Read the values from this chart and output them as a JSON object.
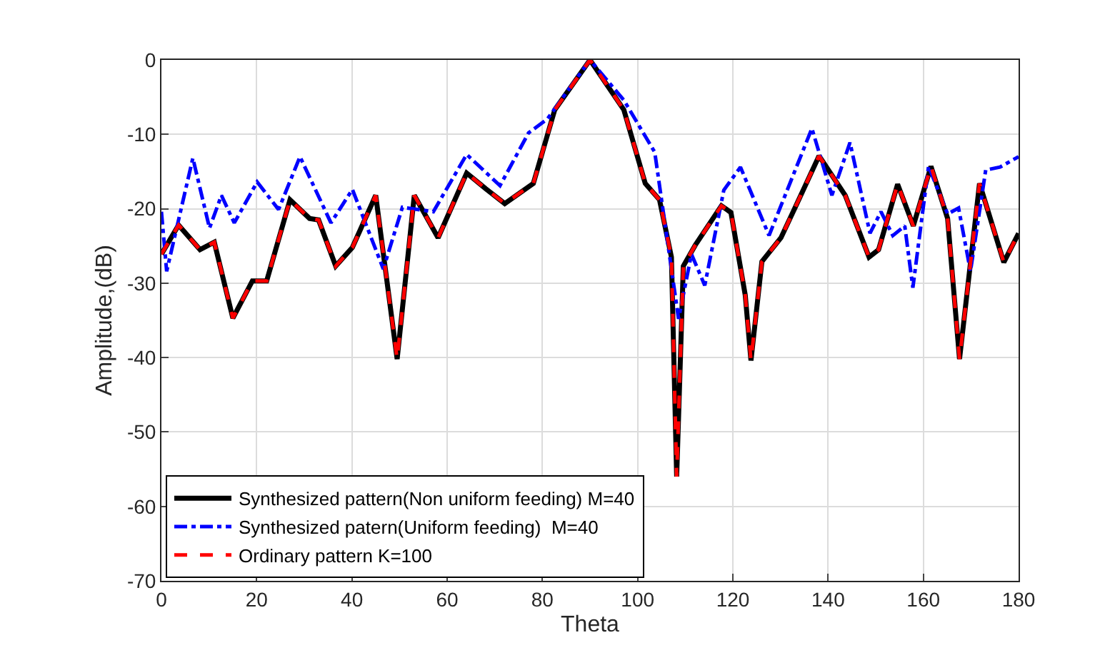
{
  "chart_data": {
    "type": "line",
    "xlabel": "Theta",
    "ylabel": "Amplitude,(dB)",
    "xlim": [
      0,
      180
    ],
    "xticks": [
      0,
      20,
      40,
      60,
      80,
      100,
      120,
      140,
      160,
      180
    ],
    "ylim": [
      -70,
      0
    ],
    "yticks": [
      -70,
      -60,
      -50,
      -40,
      -30,
      -20,
      -10,
      0
    ],
    "grid": true,
    "legend": "bottom left",
    "marker": "none",
    "series": [
      {
        "name": "Synthesized pattern(Non uniform feeding) M=40",
        "color": "#000000",
        "line_style": "solid",
        "x": [
          0,
          3.6,
          8.1,
          11.1,
          15,
          19.1,
          22.1,
          27,
          31.1,
          33,
          36.6,
          40.1,
          45,
          49.5,
          53.1,
          58.1,
          64.1,
          68.1,
          72.1,
          78.1,
          82.6,
          90,
          97.1,
          101.6,
          104.6,
          107.1,
          108.2,
          109.6,
          112.1,
          117.6,
          119.6,
          122.6,
          123.8,
          126.1,
          130.1,
          133.1,
          138.1,
          143.6,
          148.6,
          150.6,
          154.6,
          157.9,
          161.6,
          165.1,
          167.6,
          171.8,
          176.9,
          180
        ],
        "values": [
          -26.1,
          -22.2,
          -25.5,
          -24.5,
          -34.7,
          -29.7,
          -29.7,
          -18.8,
          -21.3,
          -21.5,
          -27.7,
          -25.2,
          -18.2,
          -40.2,
          -18.2,
          -23.9,
          -15.2,
          -17.3,
          -19.3,
          -16.6,
          -6.7,
          0,
          -6.7,
          -16.6,
          -18.8,
          -26.5,
          -56,
          -27.7,
          -24.9,
          -19.6,
          -20.5,
          -31.6,
          -40.4,
          -27.1,
          -23.9,
          -19.8,
          -12.9,
          -18.2,
          -26.5,
          -25.5,
          -16.7,
          -22.3,
          -14.3,
          -21.3,
          -40.2,
          -16.6,
          -27.2,
          -23.3
        ]
      },
      {
        "name": "Synthesized patern(Uniform feeding)  M=40",
        "color": "#0000ff",
        "line_style": "dashdot",
        "x": [
          0,
          1.1,
          6.6,
          10.1,
          12.6,
          15.3,
          20.1,
          24.6,
          29.1,
          35.6,
          40.1,
          46.6,
          50.6,
          57.1,
          64.1,
          71.1,
          77.1,
          81.1,
          90,
          97.1,
          103.6,
          108.6,
          111.3,
          114.1,
          118.1,
          121.6,
          127.6,
          136.6,
          140.8,
          144.6,
          148.8,
          151.1,
          153.6,
          156.1,
          157.8,
          161.1,
          165.1,
          167.4,
          169.9,
          173.1,
          176.1,
          180
        ],
        "values": [
          -20.4,
          -28.4,
          -13.2,
          -22.6,
          -18.2,
          -21.9,
          -16.4,
          -20.1,
          -13,
          -21.9,
          -17.4,
          -28.1,
          -19.8,
          -20.4,
          -12.7,
          -16.9,
          -9.8,
          -7.9,
          0,
          -5.4,
          -12.4,
          -34.8,
          -26.1,
          -30.3,
          -17.5,
          -14.4,
          -23.6,
          -9.2,
          -18.2,
          -11.1,
          -23.3,
          -20.4,
          -23.6,
          -22.3,
          -30.6,
          -14.3,
          -20.7,
          -19.9,
          -28.4,
          -14.8,
          -14.4,
          -13
        ]
      },
      {
        "name": "Ordinary pattern K=100",
        "color": "#ff0000",
        "line_style": "dashed",
        "x": [
          0,
          3.6,
          8.1,
          11.1,
          15,
          19.1,
          22.1,
          27,
          31.1,
          33,
          36.6,
          40.1,
          45,
          49.5,
          53.1,
          58.1,
          64.1,
          68.1,
          72.1,
          78.1,
          82.6,
          90,
          97.1,
          101.6,
          104.6,
          107.1,
          108.2,
          109.6,
          112.1,
          117.6,
          119.6,
          122.6,
          123.8,
          126.1,
          130.1,
          133.1,
          138.1,
          143.6,
          148.6,
          150.6,
          154.6,
          157.9,
          161.6,
          165.1,
          167.6,
          171.8,
          176.9,
          180
        ],
        "values": [
          -26.1,
          -22.2,
          -25.5,
          -24.5,
          -34.7,
          -29.7,
          -29.7,
          -18.8,
          -21.3,
          -21.5,
          -27.7,
          -25.2,
          -18.2,
          -40.2,
          -18.2,
          -23.9,
          -15.2,
          -17.3,
          -19.3,
          -16.6,
          -6.7,
          0,
          -6.7,
          -16.6,
          -18.8,
          -26.5,
          -56,
          -27.7,
          -24.9,
          -19.6,
          -20.5,
          -31.6,
          -40.4,
          -27.1,
          -23.9,
          -19.8,
          -12.9,
          -18.2,
          -26.5,
          -25.5,
          -16.7,
          -22.3,
          -14.3,
          -21.3,
          -40.2,
          -16.6,
          -27.2,
          -23.3
        ]
      }
    ]
  }
}
